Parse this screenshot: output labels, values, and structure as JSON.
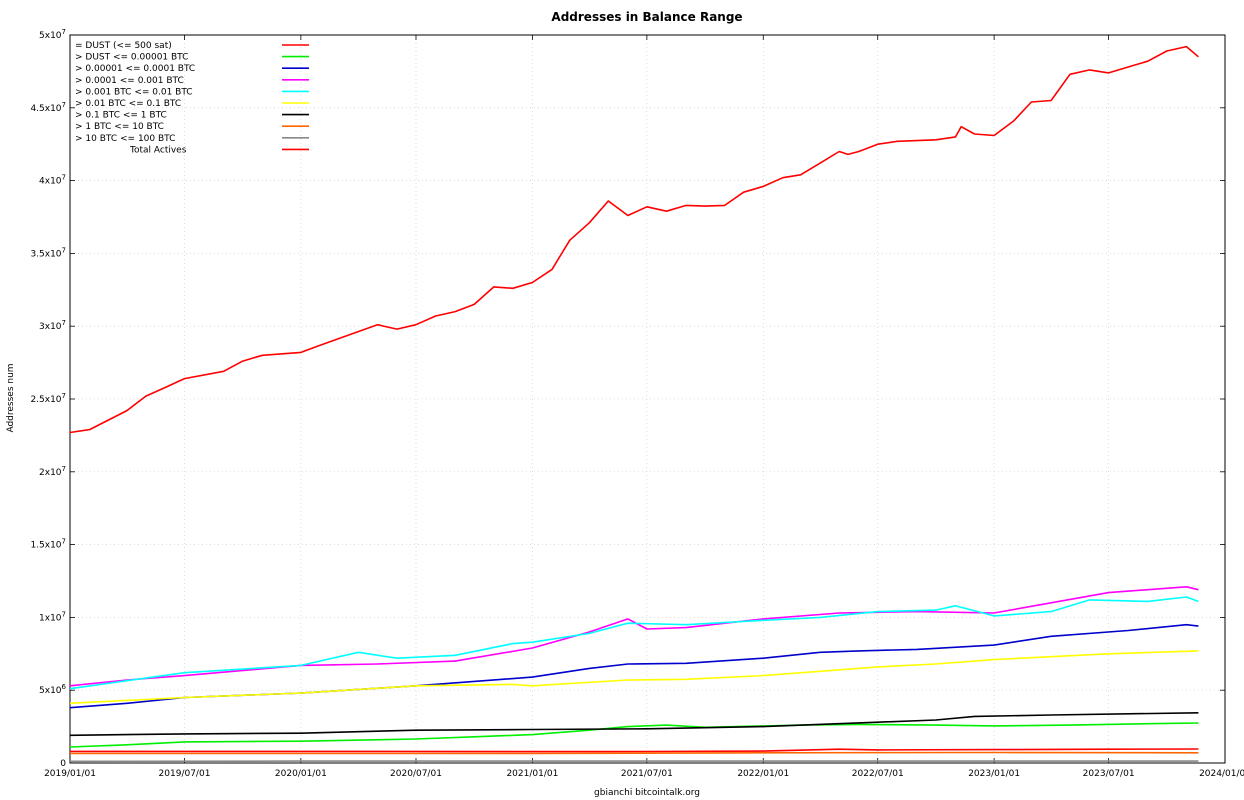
{
  "chart_data": {
    "type": "line",
    "title": "Addresses in Balance Range",
    "xlabel": "gbianchi bitcointalk.org",
    "ylabel": "Addresses num",
    "ylim": [
      0,
      50000000
    ],
    "y_ticks": [
      {
        "value": 0,
        "mant": "0",
        "exp": ""
      },
      {
        "value": 5000000,
        "mant": "5x10",
        "exp": "6"
      },
      {
        "value": 10000000,
        "mant": "1x10",
        "exp": "7"
      },
      {
        "value": 15000000,
        "mant": "1.5x10",
        "exp": "7"
      },
      {
        "value": 20000000,
        "mant": "2x10",
        "exp": "7"
      },
      {
        "value": 25000000,
        "mant": "2.5x10",
        "exp": "7"
      },
      {
        "value": 30000000,
        "mant": "3x10",
        "exp": "7"
      },
      {
        "value": 35000000,
        "mant": "3.5x10",
        "exp": "7"
      },
      {
        "value": 40000000,
        "mant": "4x10",
        "exp": "7"
      },
      {
        "value": 45000000,
        "mant": "4.5x10",
        "exp": "7"
      },
      {
        "value": 50000000,
        "mant": "5x10",
        "exp": "7"
      }
    ],
    "x_ticks": [
      "2019/01/01",
      "2019/07/01",
      "2020/01/01",
      "2020/07/01",
      "2021/01/01",
      "2021/07/01",
      "2022/01/01",
      "2022/07/01",
      "2023/01/01",
      "2023/07/01",
      "2024/01/01"
    ],
    "xlim": [
      "2019/01/01",
      "2024/01/01"
    ],
    "grid": true,
    "legend_position": "top-left",
    "series": [
      {
        "name": "= DUST (<= 500 sat)",
        "color": "#ff0000",
        "points": [
          [
            "2019/01/01",
            800000
          ],
          [
            "2020/01/01",
            800000
          ],
          [
            "2021/01/01",
            780000
          ],
          [
            "2021/07/01",
            790000
          ],
          [
            "2022/01/01",
            820000
          ],
          [
            "2022/05/01",
            950000
          ],
          [
            "2022/07/01",
            900000
          ],
          [
            "2023/01/01",
            920000
          ],
          [
            "2023/07/01",
            950000
          ],
          [
            "2023/11/20",
            960000
          ]
        ]
      },
      {
        "name": "> DUST <= 0.00001 BTC",
        "color": "#00ee00",
        "points": [
          [
            "2019/01/01",
            1100000
          ],
          [
            "2019/04/01",
            1250000
          ],
          [
            "2019/07/01",
            1450000
          ],
          [
            "2020/01/01",
            1500000
          ],
          [
            "2020/07/01",
            1650000
          ],
          [
            "2020/10/01",
            1800000
          ],
          [
            "2021/01/01",
            1950000
          ],
          [
            "2021/04/01",
            2250000
          ],
          [
            "2021/06/01",
            2500000
          ],
          [
            "2021/08/01",
            2600000
          ],
          [
            "2021/10/01",
            2450000
          ],
          [
            "2022/03/01",
            2600000
          ],
          [
            "2022/06/01",
            2650000
          ],
          [
            "2022/10/01",
            2600000
          ],
          [
            "2023/01/01",
            2550000
          ],
          [
            "2023/05/01",
            2600000
          ],
          [
            "2023/09/01",
            2700000
          ],
          [
            "2023/11/20",
            2750000
          ]
        ]
      },
      {
        "name": "> 0.00001 <= 0.0001 BTC",
        "color": "#0000cc",
        "points": [
          [
            "2019/01/01",
            3800000
          ],
          [
            "2019/04/01",
            4100000
          ],
          [
            "2019/07/01",
            4500000
          ],
          [
            "2020/01/01",
            4800000
          ],
          [
            "2020/07/01",
            5300000
          ],
          [
            "2021/01/01",
            5900000
          ],
          [
            "2021/04/01",
            6500000
          ],
          [
            "2021/06/01",
            6800000
          ],
          [
            "2021/09/01",
            6850000
          ],
          [
            "2022/01/01",
            7200000
          ],
          [
            "2022/04/01",
            7600000
          ],
          [
            "2022/06/01",
            7700000
          ],
          [
            "2022/09/01",
            7800000
          ],
          [
            "2023/01/01",
            8100000
          ],
          [
            "2023/04/01",
            8700000
          ],
          [
            "2023/08/01",
            9100000
          ],
          [
            "2023/11/01",
            9500000
          ],
          [
            "2023/11/20",
            9400000
          ]
        ]
      },
      {
        "name": "> 0.0001 <= 0.001 BTC",
        "color": "#ff00ff",
        "points": [
          [
            "2019/01/01",
            5300000
          ],
          [
            "2019/04/01",
            5700000
          ],
          [
            "2019/07/01",
            6000000
          ],
          [
            "2020/01/01",
            6700000
          ],
          [
            "2020/05/01",
            6800000
          ],
          [
            "2020/09/01",
            7000000
          ],
          [
            "2021/01/01",
            7900000
          ],
          [
            "2021/04/01",
            9000000
          ],
          [
            "2021/06/01",
            9900000
          ],
          [
            "2021/07/01",
            9200000
          ],
          [
            "2021/09/01",
            9300000
          ],
          [
            "2022/01/01",
            9900000
          ],
          [
            "2022/05/01",
            10300000
          ],
          [
            "2022/09/01",
            10400000
          ],
          [
            "2023/01/01",
            10300000
          ],
          [
            "2023/04/01",
            11000000
          ],
          [
            "2023/07/01",
            11700000
          ],
          [
            "2023/11/01",
            12100000
          ],
          [
            "2023/11/20",
            11900000
          ]
        ]
      },
      {
        "name": "> 0.001 BTC <= 0.01 BTC",
        "color": "#00ffff",
        "points": [
          [
            "2019/01/01",
            5100000
          ],
          [
            "2019/07/01",
            6200000
          ],
          [
            "2020/01/01",
            6700000
          ],
          [
            "2020/04/01",
            7600000
          ],
          [
            "2020/06/01",
            7200000
          ],
          [
            "2020/09/01",
            7400000
          ],
          [
            "2020/12/01",
            8200000
          ],
          [
            "2021/01/01",
            8300000
          ],
          [
            "2021/04/01",
            8900000
          ],
          [
            "2021/06/01",
            9600000
          ],
          [
            "2021/09/01",
            9500000
          ],
          [
            "2022/01/01",
            9800000
          ],
          [
            "2022/04/01",
            10000000
          ],
          [
            "2022/07/01",
            10400000
          ],
          [
            "2022/10/01",
            10500000
          ],
          [
            "2022/11/01",
            10800000
          ],
          [
            "2023/01/01",
            10100000
          ],
          [
            "2023/04/01",
            10400000
          ],
          [
            "2023/06/01",
            11200000
          ],
          [
            "2023/09/01",
            11100000
          ],
          [
            "2023/11/01",
            11400000
          ],
          [
            "2023/11/20",
            11100000
          ]
        ]
      },
      {
        "name": "> 0.01 BTC <= 0.1 BTC",
        "color": "#ffff00",
        "points": [
          [
            "2019/01/01",
            4100000
          ],
          [
            "2019/07/01",
            4500000
          ],
          [
            "2020/01/01",
            4800000
          ],
          [
            "2020/07/01",
            5300000
          ],
          [
            "2020/12/01",
            5400000
          ],
          [
            "2021/01/01",
            5300000
          ],
          [
            "2021/06/01",
            5700000
          ],
          [
            "2021/09/01",
            5750000
          ],
          [
            "2022/01/01",
            6000000
          ],
          [
            "2022/04/01",
            6300000
          ],
          [
            "2022/07/01",
            6600000
          ],
          [
            "2022/10/01",
            6800000
          ],
          [
            "2023/01/01",
            7100000
          ],
          [
            "2023/04/01",
            7300000
          ],
          [
            "2023/07/01",
            7500000
          ],
          [
            "2023/11/20",
            7700000
          ]
        ]
      },
      {
        "name": "> 0.1 BTC <= 1 BTC",
        "color": "#000000",
        "points": [
          [
            "2019/01/01",
            1900000
          ],
          [
            "2019/07/01",
            2000000
          ],
          [
            "2020/01/01",
            2050000
          ],
          [
            "2020/07/01",
            2250000
          ],
          [
            "2021/01/01",
            2300000
          ],
          [
            "2021/07/01",
            2350000
          ],
          [
            "2022/01/01",
            2500000
          ],
          [
            "2022/07/01",
            2800000
          ],
          [
            "2022/10/01",
            2950000
          ],
          [
            "2022/12/01",
            3200000
          ],
          [
            "2023/04/01",
            3300000
          ],
          [
            "2023/11/20",
            3450000
          ]
        ]
      },
      {
        "name": "> 1 BTC <= 10 BTC",
        "color": "#ff6600",
        "points": [
          [
            "2019/01/01",
            650000
          ],
          [
            "2020/01/01",
            650000
          ],
          [
            "2021/01/01",
            650000
          ],
          [
            "2022/01/01",
            700000
          ],
          [
            "2023/01/01",
            720000
          ],
          [
            "2023/11/20",
            700000
          ]
        ]
      },
      {
        "name": "> 10 BTC <= 100 BTC",
        "color": "#888888",
        "points": [
          [
            "2019/01/01",
            120000
          ],
          [
            "2020/01/01",
            130000
          ],
          [
            "2021/01/01",
            130000
          ],
          [
            "2022/01/01",
            130000
          ],
          [
            "2023/01/01",
            130000
          ],
          [
            "2023/11/20",
            130000
          ]
        ]
      },
      {
        "name": "Total Actives",
        "color": "#ff0000",
        "points": [
          [
            "2019/01/01",
            22700000
          ],
          [
            "2019/02/01",
            22900000
          ],
          [
            "2019/04/01",
            24200000
          ],
          [
            "2019/05/01",
            25200000
          ],
          [
            "2019/06/01",
            25800000
          ],
          [
            "2019/07/01",
            26400000
          ],
          [
            "2019/09/01",
            26900000
          ],
          [
            "2019/10/01",
            27600000
          ],
          [
            "2019/11/01",
            28000000
          ],
          [
            "2020/01/01",
            28200000
          ],
          [
            "2020/02/01",
            28700000
          ],
          [
            "2020/05/01",
            30100000
          ],
          [
            "2020/06/01",
            29800000
          ],
          [
            "2020/07/01",
            30100000
          ],
          [
            "2020/08/01",
            30700000
          ],
          [
            "2020/09/01",
            31000000
          ],
          [
            "2020/10/01",
            31500000
          ],
          [
            "2020/11/01",
            32700000
          ],
          [
            "2020/12/01",
            32600000
          ],
          [
            "2021/01/01",
            33000000
          ],
          [
            "2021/02/01",
            33900000
          ],
          [
            "2021/03/01",
            35900000
          ],
          [
            "2021/04/01",
            37100000
          ],
          [
            "2021/05/01",
            38600000
          ],
          [
            "2021/06/01",
            37600000
          ],
          [
            "2021/07/01",
            38200000
          ],
          [
            "2021/08/01",
            37900000
          ],
          [
            "2021/09/01",
            38300000
          ],
          [
            "2021/10/01",
            38250000
          ],
          [
            "2021/11/01",
            38300000
          ],
          [
            "2021/12/01",
            39200000
          ],
          [
            "2022/01/01",
            39600000
          ],
          [
            "2022/02/01",
            40200000
          ],
          [
            "2022/03/01",
            40400000
          ],
          [
            "2022/04/01",
            41200000
          ],
          [
            "2022/05/01",
            42000000
          ],
          [
            "2022/05/15",
            41800000
          ],
          [
            "2022/06/01",
            42000000
          ],
          [
            "2022/07/01",
            42500000
          ],
          [
            "2022/08/01",
            42700000
          ],
          [
            "2022/10/01",
            42800000
          ],
          [
            "2022/11/01",
            43000000
          ],
          [
            "2022/11/10",
            43700000
          ],
          [
            "2022/12/01",
            43200000
          ],
          [
            "2023/01/01",
            43100000
          ],
          [
            "2023/02/01",
            44100000
          ],
          [
            "2023/03/01",
            45400000
          ],
          [
            "2023/04/01",
            45500000
          ],
          [
            "2023/05/01",
            47300000
          ],
          [
            "2023/06/01",
            47600000
          ],
          [
            "2023/07/01",
            47400000
          ],
          [
            "2023/08/01",
            47800000
          ],
          [
            "2023/09/01",
            48200000
          ],
          [
            "2023/10/01",
            48900000
          ],
          [
            "2023/11/01",
            49200000
          ],
          [
            "2023/11/20",
            48500000
          ]
        ]
      }
    ]
  }
}
